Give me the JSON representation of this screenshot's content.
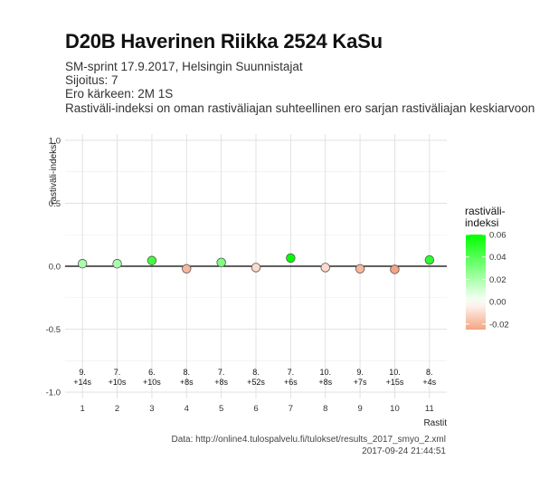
{
  "header": {
    "title": "D20B Haverinen Riikka 2524 KaSu",
    "subtitle_lines": [
      "SM-sprint 17.9.2017, Helsingin Suunnistajat",
      "Sijoitus: 7",
      "Ero kärkeen: 2M 1S",
      "Rastiväli-indeksi on oman rastiväliajan suhteellinen ero sarjan rastiväliajan keskiarvoon"
    ]
  },
  "chart_data": {
    "type": "scatter",
    "xlabel": "Rastit",
    "ylabel": "rastiväli-indeksi",
    "x": [
      1,
      2,
      3,
      4,
      5,
      6,
      7,
      8,
      9,
      10,
      11
    ],
    "y": [
      0.02,
      0.02,
      0.045,
      -0.02,
      0.03,
      -0.01,
      0.065,
      -0.01,
      -0.02,
      -0.025,
      0.05
    ],
    "ylim": [
      -1.05,
      1.05
    ],
    "yticks": [
      1.0,
      0.5,
      0.0,
      -0.5,
      -1.0
    ],
    "ytick_labels": [
      "1.0",
      "0.5",
      "0.0",
      "-0.5",
      "-1.0"
    ],
    "xticks": [
      "1",
      "2",
      "3",
      "4",
      "5",
      "6",
      "7",
      "8",
      "9",
      "10",
      "11"
    ],
    "annotations": [
      {
        "place": "9.",
        "diff": "+14s"
      },
      {
        "place": "7.",
        "diff": "+10s"
      },
      {
        "place": "6.",
        "diff": "+10s"
      },
      {
        "place": "8.",
        "diff": "+8s"
      },
      {
        "place": "7.",
        "diff": "+8s"
      },
      {
        "place": "8.",
        "diff": "+52s"
      },
      {
        "place": "7.",
        "diff": "+6s"
      },
      {
        "place": "10.",
        "diff": "+8s"
      },
      {
        "place": "9.",
        "diff": "+7s"
      },
      {
        "place": "10.",
        "diff": "+15s"
      },
      {
        "place": "8.",
        "diff": "+4s"
      }
    ],
    "grid": true,
    "legend": {
      "title_lines": [
        "rastiväli-",
        "indeksi"
      ],
      "placement": "right",
      "breaks": [
        0.06,
        0.04,
        0.02,
        0.0,
        -0.02
      ],
      "break_labels": [
        "0.06",
        "0.04",
        "0.02",
        "0.00",
        "-0.02"
      ],
      "range": [
        -0.025,
        0.06
      ]
    },
    "colors": {
      "high": "#00ff00",
      "mid": "#ffffff",
      "low": "#f4a582",
      "zero_line": "#000000",
      "grid": "#dedede"
    }
  },
  "footer": {
    "source": "Data: http://online4.tulospalvelu.fi/tulokset/results_2017_smyo_2.xml",
    "timestamp": "2017-09-24 21:44:51"
  }
}
